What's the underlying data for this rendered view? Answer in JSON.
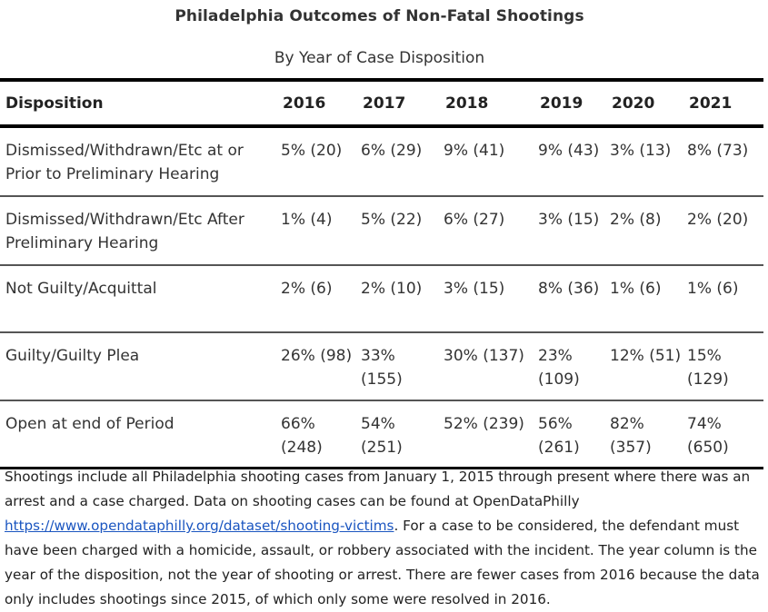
{
  "title": "Philadelphia Outcomes of Non-Fatal Shootings",
  "subtitle": "By Year of Case Disposition",
  "table": {
    "headers": [
      "Disposition",
      "2016",
      "2017",
      "2018",
      "2019",
      "2020",
      "2021"
    ],
    "rows": [
      [
        "Dismissed/Withdrawn/Etc at or Prior to Preliminary Hearing",
        "5% (20)",
        "6% (29)",
        "9% (41)",
        "9% (43)",
        "3% (13)",
        "8% (73)"
      ],
      [
        "Dismissed/Withdrawn/Etc After Preliminary Hearing",
        "1% (4)",
        "5% (22)",
        "6% (27)",
        "3% (15)",
        "2% (8)",
        "2% (20)"
      ],
      [
        "Not Guilty/Acquittal",
        "2% (6)",
        "2% (10)",
        "3% (15)",
        "8% (36)",
        "1% (6)",
        "1% (6)"
      ],
      [
        "Guilty/Guilty Plea",
        "26% (98)",
        "33% (155)",
        "30% (137)",
        "23% (109)",
        "12% (51)",
        "15% (129)"
      ],
      [
        "Open at end of Period",
        "66% (248)",
        "54% (251)",
        "52% (239)",
        "56% (261)",
        "82% (357)",
        "74% (650)"
      ]
    ]
  },
  "note": {
    "text_before": "Shootings include all Philadelphia shooting cases from January 1, 2015 through present where there was an arrest and a case charged. Data on shooting cases can be found at OpenDataPhilly ",
    "link_text": "https://www.opendataphilly.org/dataset/shooting-victims",
    "text_after": ". For a case to be considered, the defendant must have been charged with a homicide, assault, or robbery associated with the incident. The year column is the year of the disposition, not the year of shooting or arrest. There are fewer cases from 2016 because the data only includes shootings since 2015, of which only some were resolved in 2016."
  },
  "colors": {
    "link": "#1a55c0",
    "rule": "#000000"
  }
}
